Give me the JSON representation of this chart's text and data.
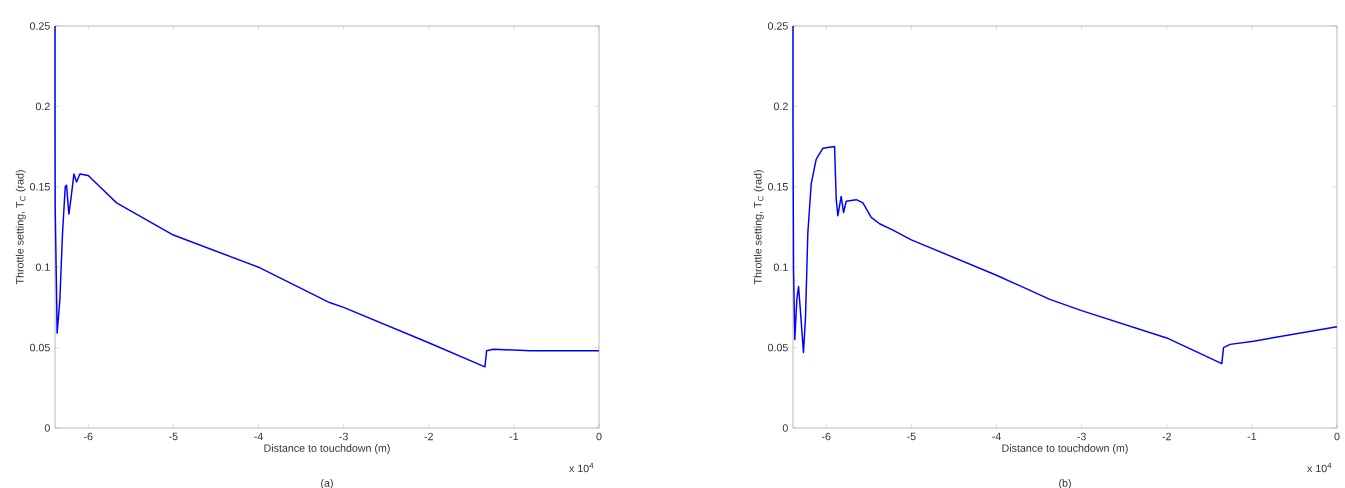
{
  "chart_data": [
    {
      "type": "line",
      "xlabel": "Distance to touchdown (m)",
      "ylabel": "Throttle setting, T$_{C}$ (rad)",
      "annotations": [
        "x 10$^{4}$",
        "(a)"
      ],
      "xlim": [
        -6.39,
        0
      ],
      "ylim": [
        0,
        0.25
      ],
      "xticks": [
        -6,
        -5,
        -4,
        -3,
        -2,
        -1,
        0
      ],
      "yticks": [
        0,
        0.05,
        0.1,
        0.15,
        0.2,
        0.25
      ],
      "series": [
        {
          "color": "#0000ff",
          "x": [
            -6.39,
            -6.39,
            -6.388,
            -6.365,
            -6.333,
            -6.302,
            -6.27,
            -6.255,
            -6.227,
            -6.204,
            -6.168,
            -6.137,
            -6.098,
            -6.0,
            -5.863,
            -5.667,
            -5.0,
            -4.0,
            -3.165,
            -3.0,
            -2.0,
            -1.34,
            -1.32,
            -1.24,
            -0.81,
            0
          ],
          "values": [
            0.25,
            0.19,
            0.138,
            0.059,
            0.08,
            0.121,
            0.15,
            0.151,
            0.133,
            0.142,
            0.158,
            0.153,
            0.158,
            0.157,
            0.15,
            0.14,
            0.12,
            0.1,
            0.078,
            0.075,
            0.053,
            0.038,
            0.048,
            0.049,
            0.048,
            0.048
          ]
        }
      ]
    },
    {
      "type": "line",
      "xlabel": "Distance to touchdown (m)",
      "ylabel": "Throttle setting, T$_{C}$ (rad)",
      "annotations": [
        "x 10$^{4}$",
        "(b)"
      ],
      "xlim": [
        -6.39,
        0
      ],
      "ylim": [
        0,
        0.25
      ],
      "xticks": [
        -6,
        -5,
        -4,
        -3,
        -2,
        -1,
        0
      ],
      "yticks": [
        0,
        0.05,
        0.1,
        0.15,
        0.2,
        0.25
      ],
      "series": [
        {
          "color": "#0000ff",
          "x": [
            -6.39,
            -6.39,
            -6.384,
            -6.369,
            -6.345,
            -6.325,
            -6.306,
            -6.267,
            -6.243,
            -6.216,
            -6.176,
            -6.118,
            -6.039,
            -5.902,
            -5.882,
            -5.863,
            -5.824,
            -5.796,
            -5.765,
            -5.647,
            -5.569,
            -5.471,
            -5.373,
            -5.216,
            -5.0,
            -4.0,
            -3.373,
            -3.0,
            -2.0,
            -1.353,
            -1.333,
            -1.255,
            -0.98,
            0
          ],
          "values": [
            0.25,
            0.19,
            0.1,
            0.055,
            0.08,
            0.088,
            0.075,
            0.047,
            0.069,
            0.121,
            0.152,
            0.167,
            0.174,
            0.175,
            0.142,
            0.132,
            0.144,
            0.134,
            0.141,
            0.142,
            0.14,
            0.131,
            0.127,
            0.123,
            0.117,
            0.095,
            0.08,
            0.073,
            0.056,
            0.04,
            0.05,
            0.052,
            0.054,
            0.063
          ]
        }
      ]
    }
  ]
}
